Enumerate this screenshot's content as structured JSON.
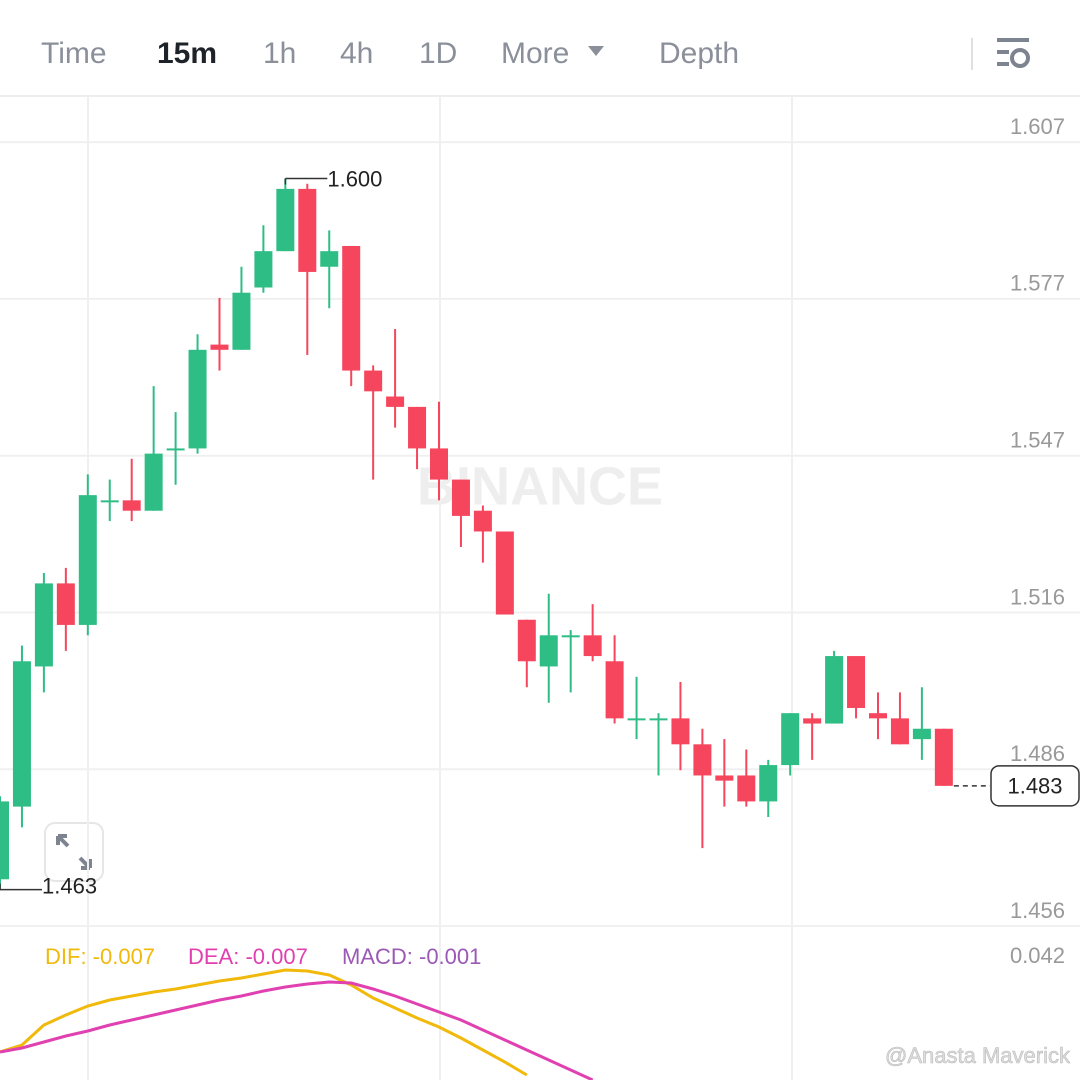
{
  "tabs": [
    "Time",
    "15m",
    "1h",
    "4h",
    "1D",
    "More",
    "Depth"
  ],
  "watermark": "BINANCE",
  "credit": "@Anasta Maverick",
  "chart_data": [
    {
      "type": "candlestick",
      "up_color": "#2ebd85",
      "down_color": "#f6465d",
      "open": [
        1.465,
        1.479,
        1.506,
        1.522,
        1.514,
        1.538,
        1.538,
        1.536,
        1.548,
        1.548,
        1.568,
        1.567,
        1.579,
        1.586,
        1.598,
        1.583,
        1.587,
        1.563,
        1.558,
        1.556,
        1.548,
        1.542,
        1.536,
        1.532,
        1.515,
        1.506,
        1.512,
        1.512,
        1.507,
        1.496,
        1.496,
        1.496,
        1.491,
        1.485,
        1.485,
        1.48,
        1.487,
        1.496,
        1.495,
        1.508,
        1.497,
        1.496,
        1.492,
        1.494
      ],
      "high": [
        1.481,
        1.51,
        1.524,
        1.525,
        1.543,
        1.542,
        1.546,
        1.56,
        1.555,
        1.57,
        1.577,
        1.583,
        1.591,
        1.6,
        1.599,
        1.59,
        1.587,
        1.564,
        1.571,
        1.556,
        1.557,
        1.542,
        1.537,
        1.532,
        1.515,
        1.52,
        1.513,
        1.518,
        1.512,
        1.504,
        1.497,
        1.503,
        1.494,
        1.492,
        1.49,
        1.488,
        1.497,
        1.497,
        1.509,
        1.508,
        1.501,
        1.501,
        1.502,
        1.494
      ],
      "low": [
        1.463,
        1.475,
        1.501,
        1.509,
        1.512,
        1.534,
        1.534,
        1.536,
        1.541,
        1.547,
        1.563,
        1.567,
        1.578,
        1.586,
        1.566,
        1.575,
        1.56,
        1.542,
        1.552,
        1.544,
        1.538,
        1.529,
        1.526,
        1.516,
        1.502,
        1.499,
        1.501,
        1.507,
        1.495,
        1.492,
        1.485,
        1.486,
        1.471,
        1.479,
        1.479,
        1.477,
        1.485,
        1.488,
        1.495,
        1.496,
        1.492,
        1.491,
        1.488,
        1.483
      ],
      "close": [
        1.48,
        1.507,
        1.522,
        1.514,
        1.539,
        1.538,
        1.536,
        1.547,
        1.548,
        1.567,
        1.567,
        1.578,
        1.586,
        1.598,
        1.582,
        1.586,
        1.563,
        1.559,
        1.556,
        1.548,
        1.542,
        1.535,
        1.532,
        1.516,
        1.507,
        1.512,
        1.512,
        1.508,
        1.496,
        1.496,
        1.496,
        1.491,
        1.485,
        1.484,
        1.48,
        1.487,
        1.497,
        1.495,
        1.508,
        1.498,
        1.496,
        1.491,
        1.494,
        1.483
      ],
      "ylim": [
        1.456,
        1.6157
      ],
      "yticks": [
        1.607,
        {
          "value": 1.5768,
          "label": "1.577"
        },
        {
          "value": 1.5466,
          "label": "1.547"
        },
        {
          "value": 1.5164,
          "label": "1.516"
        },
        {
          "value": 1.4862,
          "label": "1.486"
        },
        {
          "value": 1.456,
          "label": "1.456"
        }
      ],
      "grid": true,
      "high_mark": {
        "value": 1.6,
        "label": "1.600"
      },
      "low_mark": {
        "value": 1.463,
        "label": "1.463"
      },
      "last_price": {
        "value": 1.483,
        "label": "1.483"
      }
    },
    {
      "type": "line",
      "series": [
        {
          "name": "DIF: -0.007",
          "color": "#f0b90b",
          "values": [
            0.0135,
            0.0156,
            0.0216,
            0.0246,
            0.0273,
            0.0291,
            0.0303,
            0.0315,
            0.0324,
            0.0336,
            0.0348,
            0.0357,
            0.0369,
            0.0381,
            0.0378,
            0.0366,
            0.0336,
            0.0297,
            0.0267,
            0.0237,
            0.021,
            0.0177,
            0.0141,
            0.0105,
            0.0066,
            null,
            null,
            null,
            null,
            null,
            null,
            null,
            null,
            null,
            null,
            null,
            null,
            null,
            null,
            null,
            null,
            null,
            null,
            null
          ]
        },
        {
          "name": "DEA: -0.007",
          "color": "#e040b0",
          "values": [
            0.0135,
            0.0147,
            0.0165,
            0.0183,
            0.0198,
            0.0216,
            0.0231,
            0.0246,
            0.0261,
            0.0276,
            0.0291,
            0.0303,
            0.0318,
            0.033,
            0.0339,
            0.0345,
            0.0342,
            0.0324,
            0.0303,
            0.0279,
            0.0255,
            0.0231,
            0.0201,
            0.0171,
            0.0141,
            0.0111,
            0.0081,
            0.0051,
            null,
            null,
            null,
            null,
            null,
            null,
            null,
            null,
            null,
            null,
            null,
            null,
            null,
            null,
            null,
            null
          ]
        },
        {
          "name": "MACD: -0.001",
          "color": "#9b59b6",
          "values": []
        }
      ],
      "ylim": [
        0.0051,
        0.0513
      ],
      "yticks": [
        0.042
      ]
    }
  ]
}
